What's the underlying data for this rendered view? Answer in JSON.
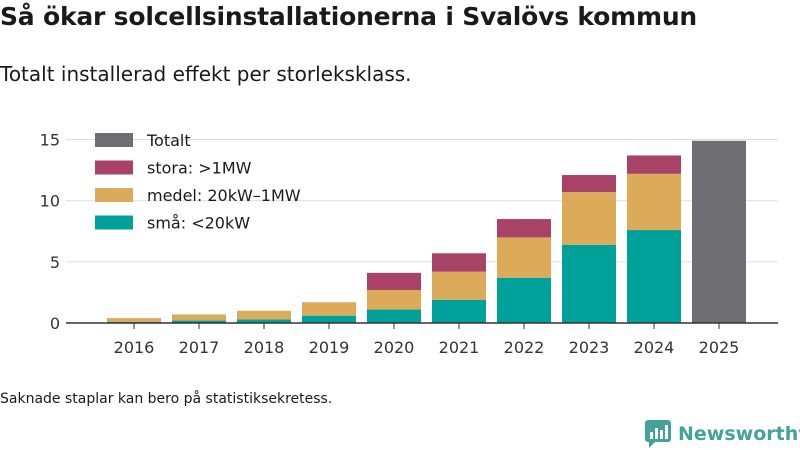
{
  "title": "Så ökar solcellsinstallationerna i Svalövs kommun",
  "subtitle": "Totalt installerad effekt per storleksklass.",
  "footnote": "Saknade staplar kan bero på statistiksekretess.",
  "brand": "Newsworthy",
  "colors": {
    "sma": "#00a19a",
    "medel": "#dbab5a",
    "stora": "#a84267",
    "totalt": "#6e6e73",
    "grid": "#dddddd",
    "axis": "#333333",
    "brand": "#43a39b"
  },
  "chart_data": {
    "type": "bar",
    "stacked": true,
    "title": "Så ökar solcellsinstallationerna i Svalövs kommun",
    "subtitle": "Totalt installerad effekt per storleksklass.",
    "xlabel": "",
    "ylabel": "",
    "ylim": [
      0,
      15.7
    ],
    "yticks": [
      0,
      5,
      10,
      15
    ],
    "grid": true,
    "legend_position": "top-left",
    "categories": [
      "2016",
      "2017",
      "2018",
      "2019",
      "2020",
      "2021",
      "2022",
      "2023",
      "2024",
      "2025"
    ],
    "series": [
      {
        "key": "sma",
        "name": "små: <20kW",
        "values": [
          0.1,
          0.2,
          0.3,
          0.6,
          1.1,
          1.9,
          3.7,
          6.4,
          7.6,
          null
        ]
      },
      {
        "key": "medel",
        "name": "medel: 20kW–1MW",
        "values": [
          0.3,
          0.5,
          0.7,
          1.1,
          1.6,
          2.3,
          3.3,
          4.3,
          4.6,
          null
        ]
      },
      {
        "key": "stora",
        "name": "stora: >1MW",
        "values": [
          0,
          0,
          0,
          0,
          1.4,
          1.5,
          1.5,
          1.4,
          1.5,
          null
        ]
      },
      {
        "key": "totalt",
        "name": "Totalt",
        "values": [
          null,
          null,
          null,
          null,
          null,
          null,
          null,
          null,
          null,
          14.9
        ]
      }
    ],
    "legend_order": [
      "totalt",
      "stora",
      "medel",
      "sma"
    ]
  }
}
